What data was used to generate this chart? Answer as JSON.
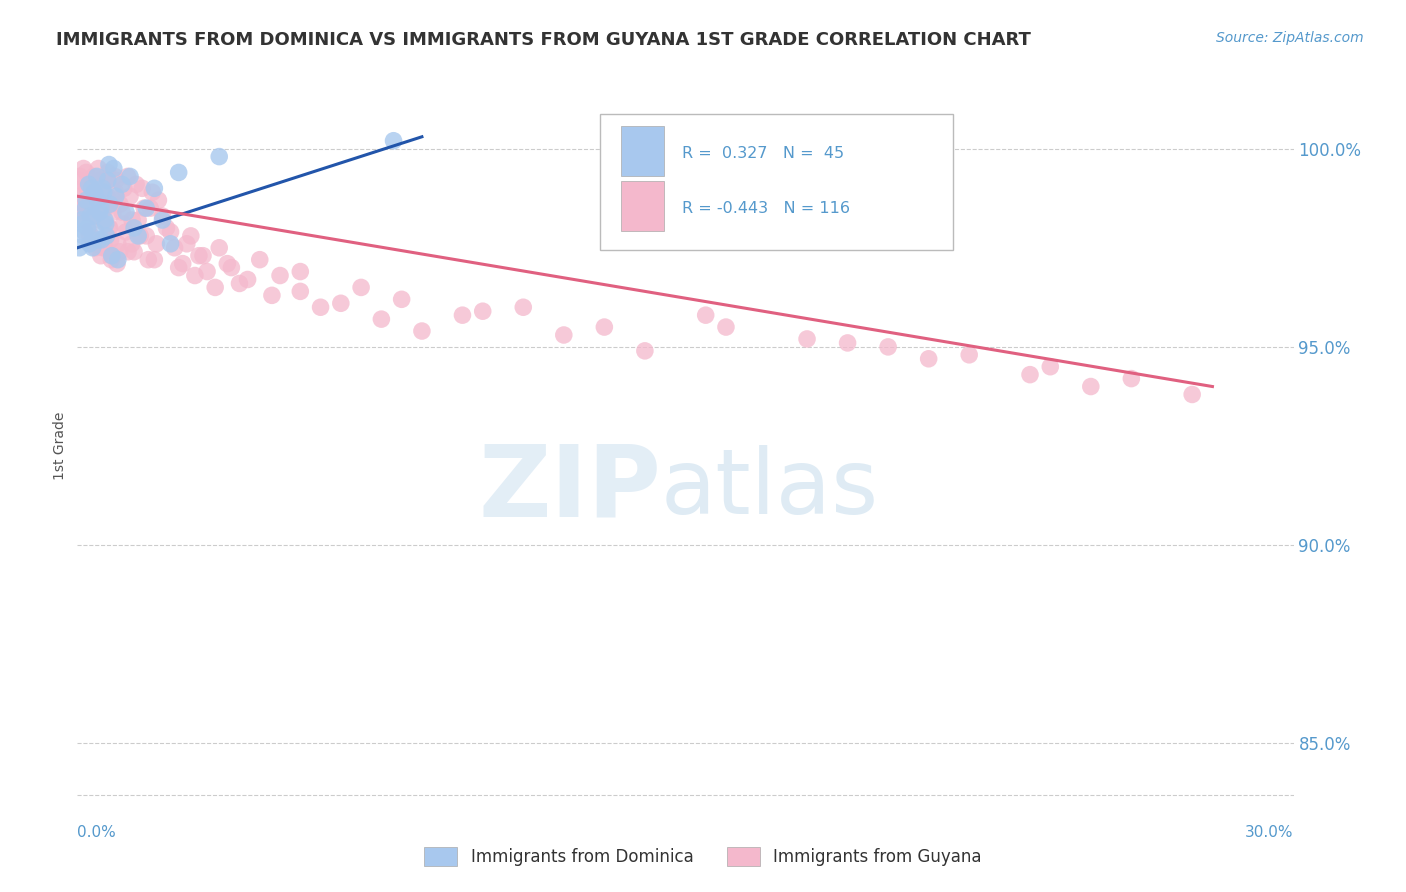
{
  "title": "IMMIGRANTS FROM DOMINICA VS IMMIGRANTS FROM GUYANA 1ST GRADE CORRELATION CHART",
  "source_text": "Source: ZipAtlas.com",
  "ylabel": "1st Grade",
  "xlim": [
    0.0,
    30.0
  ],
  "ylim": [
    83.5,
    101.5
  ],
  "y_ticks": [
    85.0,
    90.0,
    95.0,
    100.0
  ],
  "y_tick_labels": [
    "85.0%",
    "90.0%",
    "95.0%",
    "100.0%"
  ],
  "color_dominica": "#a8c8ee",
  "color_guyana": "#f4b8cc",
  "color_line_dominica": "#2255aa",
  "color_line_guyana": "#e06080",
  "color_text_blue": "#5599cc",
  "bottom_label_dominica": "Immigrants from Dominica",
  "bottom_label_guyana": "Immigrants from Guyana",
  "dominica_x": [
    0.05,
    0.1,
    0.15,
    0.2,
    0.25,
    0.3,
    0.35,
    0.4,
    0.45,
    0.5,
    0.55,
    0.6,
    0.65,
    0.7,
    0.75,
    0.8,
    0.85,
    0.9,
    0.95,
    1.0,
    1.1,
    1.2,
    1.3,
    1.4,
    1.5,
    1.7,
    1.9,
    2.1,
    2.3,
    2.5,
    0.12,
    0.18,
    0.22,
    0.28,
    0.32,
    0.38,
    0.42,
    0.48,
    0.52,
    0.58,
    0.62,
    0.68,
    0.72,
    0.78,
    3.5,
    7.8
  ],
  "dominica_y": [
    97.5,
    98.2,
    97.8,
    98.5,
    98.0,
    97.6,
    99.0,
    98.3,
    97.9,
    98.7,
    98.4,
    97.7,
    98.9,
    98.1,
    99.2,
    98.6,
    97.3,
    99.5,
    98.8,
    97.2,
    99.1,
    98.4,
    99.3,
    98.0,
    97.8,
    98.5,
    99.0,
    98.2,
    97.6,
    99.4,
    98.1,
    97.9,
    98.7,
    99.1,
    98.3,
    97.5,
    98.9,
    99.3,
    97.7,
    98.5,
    99.0,
    98.2,
    97.8,
    99.6,
    99.8,
    100.2
  ],
  "guyana_x": [
    0.05,
    0.1,
    0.15,
    0.2,
    0.25,
    0.3,
    0.35,
    0.4,
    0.45,
    0.5,
    0.55,
    0.6,
    0.65,
    0.7,
    0.75,
    0.8,
    0.85,
    0.9,
    0.95,
    1.0,
    1.1,
    1.2,
    1.3,
    1.4,
    1.5,
    1.6,
    1.7,
    1.8,
    1.9,
    2.0,
    2.2,
    2.4,
    2.6,
    2.8,
    3.0,
    3.2,
    3.5,
    3.8,
    4.0,
    4.5,
    5.0,
    5.5,
    6.0,
    7.0,
    8.0,
    9.5,
    11.0,
    13.0,
    15.5,
    18.0,
    20.0,
    22.0,
    24.0,
    26.0,
    27.5,
    0.08,
    0.12,
    0.18,
    0.22,
    0.28,
    0.32,
    0.38,
    0.42,
    0.48,
    0.52,
    0.58,
    0.62,
    0.68,
    0.72,
    0.78,
    0.82,
    0.88,
    0.92,
    0.98,
    1.05,
    1.15,
    1.25,
    1.35,
    1.45,
    1.55,
    1.65,
    1.75,
    1.85,
    1.95,
    2.1,
    2.3,
    2.5,
    2.7,
    2.9,
    3.1,
    3.4,
    3.7,
    4.2,
    4.8,
    5.5,
    6.5,
    7.5,
    8.5,
    10.0,
    12.0,
    14.0,
    16.0,
    19.0,
    21.0,
    23.5,
    25.0,
    0.06,
    0.14,
    0.24,
    0.34,
    0.44,
    0.54,
    0.64,
    0.74,
    0.84,
    0.94,
    1.04,
    1.14,
    1.24,
    1.34
  ],
  "guyana_y": [
    99.2,
    98.8,
    99.5,
    98.4,
    99.0,
    97.8,
    98.6,
    99.3,
    97.5,
    98.9,
    98.2,
    99.1,
    97.7,
    98.5,
    99.4,
    98.0,
    97.3,
    98.7,
    99.2,
    97.6,
    98.4,
    97.9,
    98.8,
    97.4,
    98.2,
    99.0,
    97.8,
    98.5,
    97.2,
    98.7,
    98.0,
    97.5,
    97.1,
    97.8,
    97.3,
    96.9,
    97.5,
    97.0,
    96.6,
    97.2,
    96.8,
    96.4,
    96.0,
    96.5,
    96.2,
    95.8,
    96.0,
    95.5,
    95.8,
    95.2,
    95.0,
    94.8,
    94.5,
    94.2,
    93.8,
    98.5,
    99.0,
    98.2,
    99.4,
    97.9,
    98.7,
    99.1,
    97.6,
    98.3,
    99.5,
    97.3,
    98.8,
    97.5,
    99.2,
    98.0,
    97.7,
    98.4,
    99.3,
    97.1,
    98.6,
    99.0,
    97.4,
    98.2,
    99.1,
    97.8,
    98.5,
    97.2,
    98.9,
    97.6,
    98.3,
    97.9,
    97.0,
    97.6,
    96.8,
    97.3,
    96.5,
    97.1,
    96.7,
    96.3,
    96.9,
    96.1,
    95.7,
    95.4,
    95.9,
    95.3,
    94.9,
    95.5,
    95.1,
    94.7,
    94.3,
    94.0,
    99.3,
    98.6,
    99.0,
    97.8,
    98.4,
    99.2,
    97.5,
    98.8,
    97.2,
    98.9,
    97.4,
    98.1,
    99.3,
    97.6
  ],
  "blue_line_x": [
    0.0,
    8.5
  ],
  "blue_line_y": [
    97.5,
    100.3
  ],
  "pink_line_x": [
    0.0,
    28.0
  ],
  "pink_line_y": [
    98.8,
    94.0
  ],
  "background_color": "#ffffff",
  "grid_color": "#cccccc",
  "title_color": "#333333"
}
